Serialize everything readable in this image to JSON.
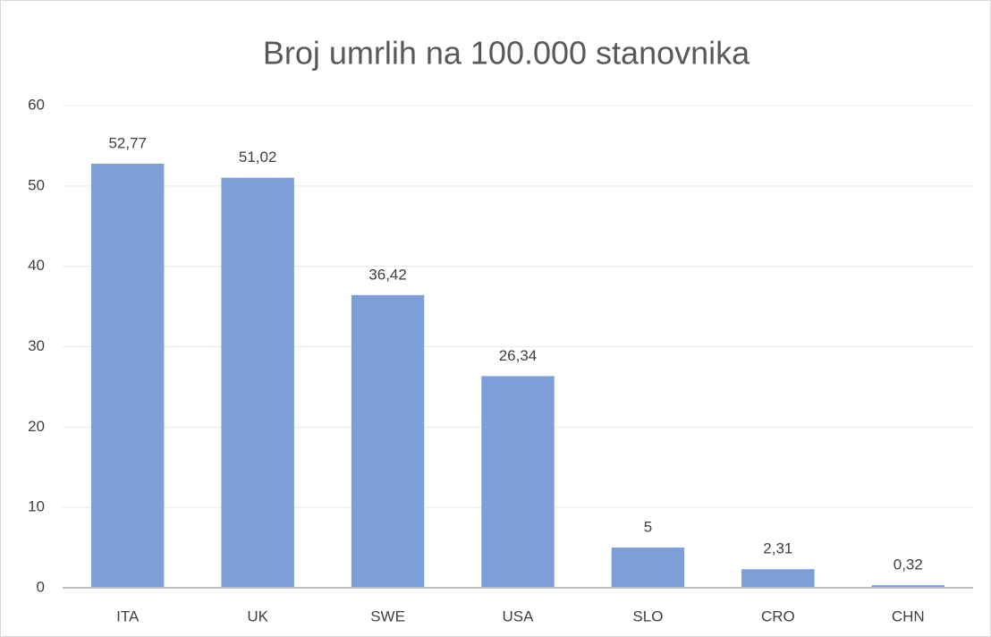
{
  "chart_data": {
    "type": "bar",
    "title": "Broj umrlih na 100.000 stanovnika",
    "categories": [
      "ITA",
      "UK",
      "SWE",
      "USA",
      "SLO",
      "CRO",
      "CHN"
    ],
    "values": [
      52.77,
      51.02,
      36.42,
      26.34,
      5,
      2.31,
      0.32
    ],
    "value_labels": [
      "52,77",
      "51,02",
      "36,42",
      "26,34",
      "5",
      "2,31",
      "0,32"
    ],
    "color": "#7b9fd6",
    "ylim": [
      0,
      60
    ],
    "yticks": [
      0,
      10,
      20,
      30,
      40,
      50,
      60
    ],
    "grid": true
  }
}
